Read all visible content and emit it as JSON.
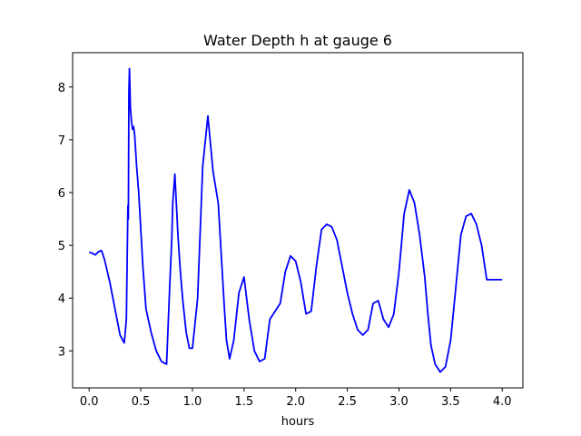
{
  "chart_data": {
    "type": "line",
    "title": "Water Depth h at gauge 6",
    "xlabel": "hours",
    "ylabel": "",
    "xlim": [
      -0.16,
      4.2
    ],
    "ylim": [
      2.3,
      8.65
    ],
    "xticks": [
      0.0,
      0.5,
      1.0,
      1.5,
      2.0,
      2.5,
      3.0,
      3.5,
      4.0
    ],
    "xtick_labels": [
      "0.0",
      "0.5",
      "1.0",
      "1.5",
      "2.0",
      "2.5",
      "3.0",
      "3.5",
      "4.0"
    ],
    "yticks": [
      3,
      4,
      5,
      6,
      7,
      8
    ],
    "ytick_labels": [
      "3",
      "4",
      "5",
      "6",
      "7",
      "8"
    ],
    "grid": false,
    "series": [
      {
        "color": "#0000ff",
        "x": [
          0.0,
          0.03,
          0.06,
          0.09,
          0.12,
          0.15,
          0.2,
          0.25,
          0.3,
          0.34,
          0.36,
          0.375,
          0.38,
          0.385,
          0.39,
          0.4,
          0.41,
          0.42,
          0.43,
          0.44,
          0.45,
          0.46,
          0.48,
          0.5,
          0.52,
          0.55,
          0.6,
          0.65,
          0.7,
          0.75,
          0.78,
          0.8,
          0.81,
          0.83,
          0.86,
          0.88,
          0.89,
          0.91,
          0.94,
          0.97,
          1.0,
          1.05,
          1.1,
          1.15,
          1.2,
          1.25,
          1.28,
          1.31,
          1.33,
          1.36,
          1.4,
          1.45,
          1.5,
          1.55,
          1.6,
          1.65,
          1.7,
          1.75,
          1.8,
          1.85,
          1.9,
          1.95,
          2.0,
          2.05,
          2.1,
          2.15,
          2.2,
          2.25,
          2.3,
          2.35,
          2.4,
          2.45,
          2.5,
          2.55,
          2.6,
          2.65,
          2.7,
          2.75,
          2.8,
          2.85,
          2.9,
          2.95,
          3.0,
          3.05,
          3.1,
          3.15,
          3.2,
          3.25,
          3.28,
          3.31,
          3.35,
          3.4,
          3.45,
          3.5,
          3.55,
          3.6,
          3.65,
          3.7,
          3.75,
          3.8,
          3.85,
          3.9,
          3.95,
          4.0
        ],
        "y": [
          4.87,
          4.85,
          4.82,
          4.88,
          4.9,
          4.72,
          4.3,
          3.8,
          3.3,
          3.15,
          3.6,
          5.75,
          5.5,
          7.9,
          8.35,
          7.6,
          7.35,
          7.2,
          7.25,
          7.1,
          6.8,
          6.5,
          6.0,
          5.3,
          4.6,
          3.8,
          3.35,
          3.0,
          2.8,
          2.75,
          4.2,
          5.1,
          5.8,
          6.35,
          5.2,
          4.6,
          4.35,
          3.9,
          3.35,
          3.05,
          3.05,
          4.0,
          6.5,
          7.45,
          6.4,
          5.8,
          4.8,
          3.8,
          3.2,
          2.85,
          3.2,
          4.1,
          4.4,
          3.6,
          3.0,
          2.8,
          2.85,
          3.6,
          3.75,
          3.9,
          4.5,
          4.8,
          4.7,
          4.3,
          3.7,
          3.75,
          4.6,
          5.3,
          5.4,
          5.35,
          5.1,
          4.6,
          4.1,
          3.7,
          3.4,
          3.3,
          3.4,
          3.9,
          3.95,
          3.6,
          3.45,
          3.7,
          4.5,
          5.6,
          6.05,
          5.8,
          5.2,
          4.4,
          3.7,
          3.1,
          2.75,
          2.6,
          2.7,
          3.2,
          4.2,
          5.2,
          5.55,
          5.6,
          5.4,
          5.0,
          4.35,
          4.35,
          4.35,
          4.35
        ]
      }
    ]
  }
}
